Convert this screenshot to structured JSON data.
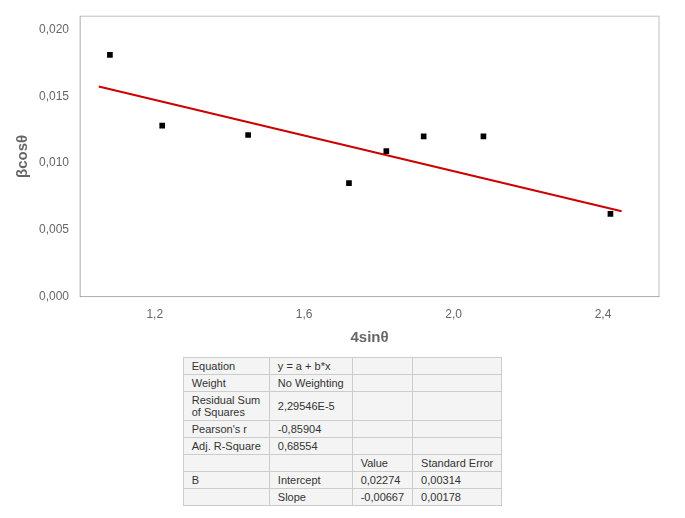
{
  "chart_data": {
    "type": "scatter",
    "xlabel": "4sinθ",
    "ylabel": "βcosθ",
    "series": [
      {
        "type": "scatter",
        "color": "#000000",
        "marker": "square",
        "x": [
          1.08,
          1.22,
          1.45,
          1.72,
          1.82,
          1.92,
          2.08,
          2.42
        ],
        "values": [
          0.0181,
          0.0128,
          0.0121,
          0.0085,
          0.0109,
          0.012,
          0.012,
          0.0062
        ]
      },
      {
        "type": "line",
        "color": "#cc0000",
        "line_style": "solid",
        "x": [
          1.05,
          2.45
        ],
        "values": [
          0.0157365,
          0.0063985
        ]
      }
    ],
    "xlim": [
      1.0,
      2.55
    ],
    "ylim": [
      0.0,
      0.021
    ],
    "xticks": [
      {
        "value": 1.2,
        "label": "1,2"
      },
      {
        "value": 1.6,
        "label": "1,6"
      },
      {
        "value": 2.0,
        "label": "2,0"
      },
      {
        "value": 2.4,
        "label": "2,4"
      }
    ],
    "yticks": [
      {
        "value": 0.0,
        "label": "0,000"
      },
      {
        "value": 0.005,
        "label": "0,005"
      },
      {
        "value": 0.01,
        "label": "0,010"
      },
      {
        "value": 0.015,
        "label": "0,015"
      },
      {
        "value": 0.02,
        "label": "0,020"
      }
    ],
    "grid": false,
    "table": [
      [
        "Equation",
        "y = a + b*x",
        null,
        null
      ],
      [
        "Weight",
        "No Weighting",
        null,
        null
      ],
      [
        "Residual Sum\nof Squares",
        "2,29546E-5",
        null,
        null
      ],
      [
        "Pearson's r",
        "-0,85904",
        null,
        null
      ],
      [
        "Adj. R-Square",
        "0,68554",
        null,
        null
      ],
      [
        null,
        null,
        "Value",
        "Standard Error"
      ],
      [
        "B",
        "Intercept",
        "0,02274",
        "0,00314"
      ],
      [
        null,
        "Slope",
        "-0,00667",
        "0,00178"
      ]
    ]
  }
}
